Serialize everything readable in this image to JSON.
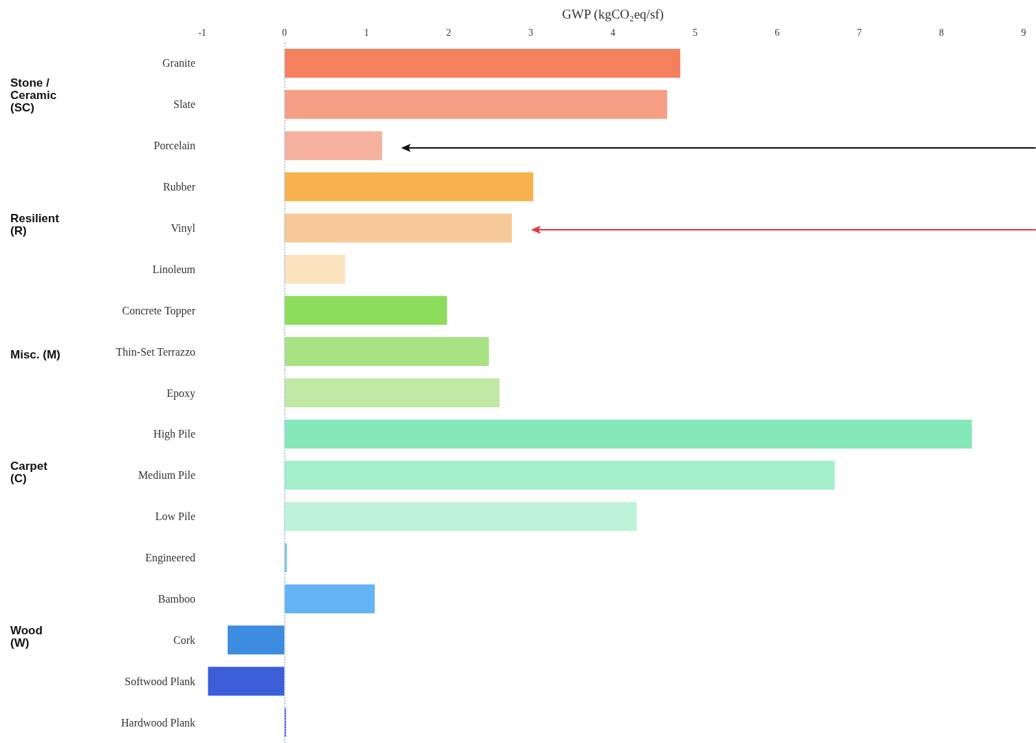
{
  "chart_data": {
    "type": "bar",
    "orientation": "horizontal",
    "xlabel": "GWP (kgCO₂eq/sf)",
    "categories": [
      "Granite",
      "Slate",
      "Porcelain",
      "Rubber",
      "Vinyl",
      "Linoleum",
      "Concrete Topper",
      "Thin-Set Terrazzo",
      "Epoxy",
      "High Pile",
      "Medium Pile",
      "Low Pile",
      "Engineered",
      "Bamboo",
      "Cork",
      "Softwood Plank",
      "Hardwood Plank"
    ],
    "values": [
      4.82,
      4.66,
      1.19,
      3.03,
      2.77,
      0.74,
      1.98,
      2.49,
      2.62,
      8.37,
      6.7,
      4.29,
      0.03,
      1.1,
      -0.69,
      -0.93,
      0.02
    ],
    "colors": [
      "#f4805e",
      "#f69e84",
      "#f5b09e",
      "#f7b24e",
      "#f7c996",
      "#fbe3bf",
      "#8ddc5c",
      "#a8e282",
      "#c1e8a4",
      "#86e8b8",
      "#a2efc9",
      "#bdf3d8",
      "#7cc4f0",
      "#62b4f5",
      "#3c8ce0",
      "#3b5fd9",
      "#5a55d8"
    ],
    "xlim": [
      -1,
      9
    ],
    "xticks": [
      -1,
      0,
      1,
      2,
      3,
      4,
      5,
      6,
      7,
      8,
      9
    ],
    "grid": false,
    "ref_lines": [
      {
        "axis": "x",
        "value": 0,
        "color": "#b8c4e8",
        "line_style": "dotted"
      }
    ],
    "annotations": [
      "Stone / Ceramic (SC)",
      "Resilient (R)",
      "Misc. (M)",
      "Carpet (C)",
      "Wood (W)"
    ]
  }
}
